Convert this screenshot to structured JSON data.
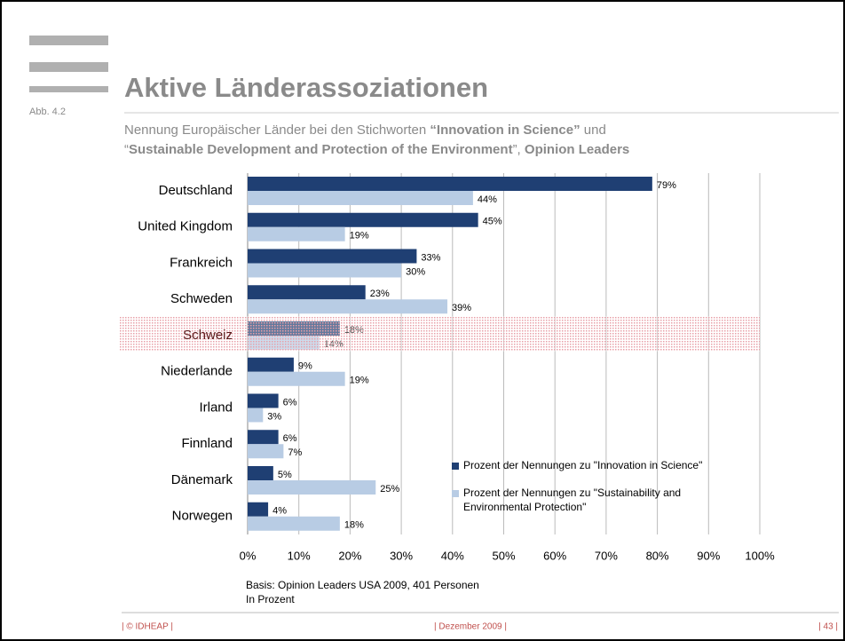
{
  "slide": {
    "figure_number": "Abb. 4.2",
    "title": "Aktive Länderassoziationen",
    "subtitle_line1": [
      "Nennung Europäischer Länder bei den Stichworten ",
      "“Innovation in Science”",
      " und"
    ],
    "subtitle_line2": [
      "“",
      "Sustainable Development and Protection of the Environment",
      "”, ",
      "Opinion Leaders"
    ],
    "footnotes": [
      "Basis: Opinion Leaders USA 2009, 401 Personen",
      "In Prozent"
    ],
    "footer": {
      "left": "| © IDHEAP |",
      "center": "| Dezember 2009 |",
      "right": "| 43 |"
    }
  },
  "chart_data": {
    "type": "bar",
    "orientation": "horizontal",
    "categories": [
      "Deutschland",
      "United Kingdom",
      "Frankreich",
      "Schweden",
      "Schweiz",
      "Niederlande",
      "Irland",
      "Finnland",
      "Dänemark",
      "Norwegen"
    ],
    "highlight": "Schweiz",
    "highlight_color": "#e8a0a8",
    "series": [
      {
        "name": "Prozent der Nennungen zu \"Innovation in Science\"",
        "color": "#1f3f73",
        "values": [
          79,
          45,
          33,
          23,
          18,
          9,
          6,
          6,
          5,
          4
        ],
        "value_labels": [
          "79%",
          "45%",
          "33%",
          "23%",
          "18%",
          "9%",
          "6%",
          "6%",
          "5%",
          "4%"
        ]
      },
      {
        "name": "Prozent der Nennungen zu \"Sustainability and Environmental Protection\"",
        "color": "#b8cce4",
        "values": [
          44,
          19,
          30,
          39,
          14,
          19,
          3,
          7,
          25,
          18
        ],
        "value_labels": [
          "44%",
          "19%",
          "30%",
          "39%",
          "14%",
          "19%",
          "3%",
          "7%",
          "25%",
          "18%"
        ]
      }
    ],
    "xlim": [
      0,
      100
    ],
    "xticks": [
      {
        "value": 0,
        "label": "0%"
      },
      {
        "value": 10,
        "label": "10%"
      },
      {
        "value": 20,
        "label": "20%"
      },
      {
        "value": 30,
        "label": "30%"
      },
      {
        "value": 40,
        "label": "40%"
      },
      {
        "value": 50,
        "label": "50%"
      },
      {
        "value": 60,
        "label": "60%"
      },
      {
        "value": 70,
        "label": "70%"
      },
      {
        "value": 80,
        "label": "80%"
      },
      {
        "value": 90,
        "label": "90%"
      },
      {
        "value": 100,
        "label": "100%"
      }
    ],
    "grid": true
  }
}
